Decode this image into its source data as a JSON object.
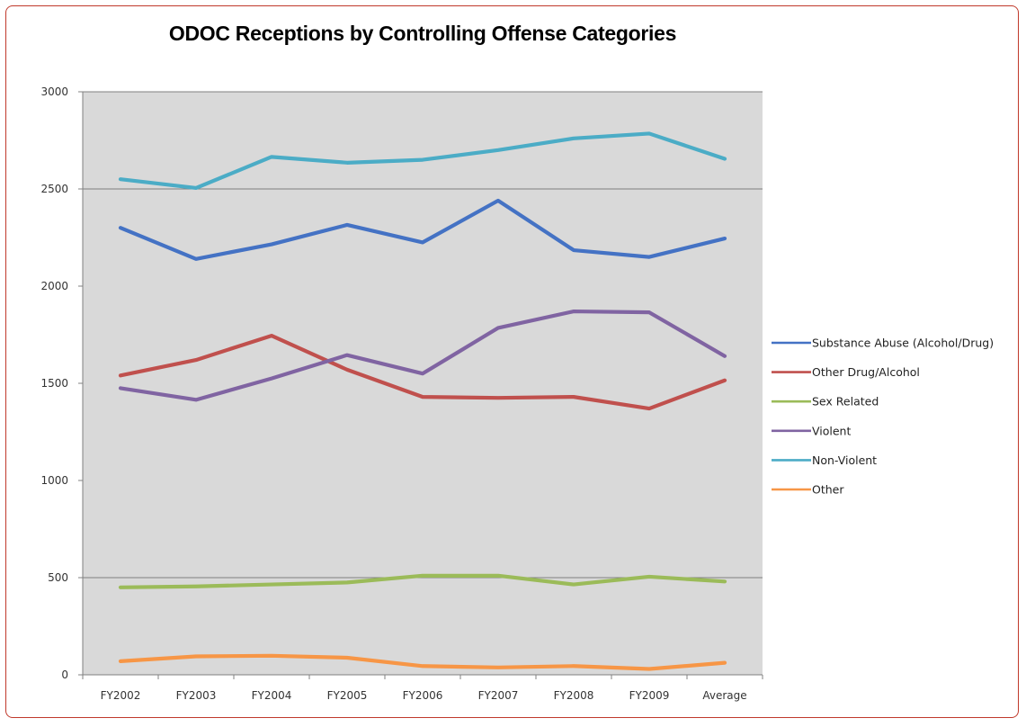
{
  "chart_data": {
    "type": "line",
    "title": "ODOC Receptions by Controlling Offense Categories",
    "xlabel": "",
    "ylabel": "",
    "categories": [
      "FY2002",
      "FY2003",
      "FY2004",
      "FY2005",
      "FY2006",
      "FY2007",
      "FY2008",
      "FY2009",
      "Average"
    ],
    "ylim": [
      0,
      3000
    ],
    "yticks": [
      0,
      500,
      1000,
      1500,
      2000,
      2500,
      3000
    ],
    "grid": "horizontal lines at 500, 2500, 3000",
    "legend_position": "right",
    "series": [
      {
        "name": "Substance Abuse (Alcohol/Drug)",
        "color": "#4472c4",
        "values": [
          2300,
          2140,
          2215,
          2315,
          2225,
          2440,
          2185,
          2150,
          2245
        ]
      },
      {
        "name": "Other Drug/Alcohol",
        "color": "#c0504d",
        "values": [
          1540,
          1620,
          1745,
          1570,
          1430,
          1425,
          1430,
          1370,
          1515
        ]
      },
      {
        "name": "Sex Related",
        "color": "#9bbb59",
        "values": [
          450,
          455,
          465,
          475,
          510,
          510,
          465,
          505,
          480
        ]
      },
      {
        "name": "Violent",
        "color": "#8064a2",
        "values": [
          1475,
          1415,
          1525,
          1645,
          1550,
          1785,
          1870,
          1865,
          1640
        ]
      },
      {
        "name": "Non-Violent",
        "color": "#4bacc6",
        "values": [
          2550,
          2505,
          2665,
          2635,
          2650,
          2700,
          2760,
          2785,
          2655
        ]
      },
      {
        "name": "Other",
        "color": "#f79646",
        "values": [
          70,
          95,
          98,
          88,
          45,
          38,
          45,
          30,
          62
        ]
      }
    ]
  }
}
